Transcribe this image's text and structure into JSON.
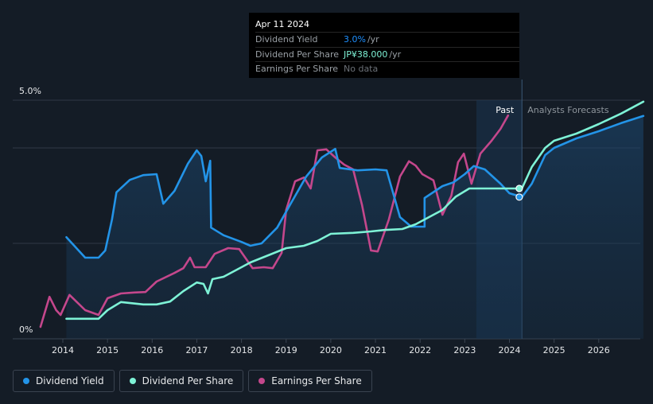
{
  "chart_data": {
    "type": "line",
    "x_range": [
      2013.45,
      2027.0
    ],
    "ylim": [
      0,
      5.0
    ],
    "y_axis_labels": [
      {
        "value": 5.0,
        "label": "5.0%"
      },
      {
        "value": 0,
        "label": "0%"
      }
    ],
    "gridlines": [
      5.0,
      4.0,
      2.0
    ],
    "x_ticks": [
      2014,
      2015,
      2016,
      2017,
      2018,
      2019,
      2020,
      2021,
      2022,
      2023,
      2024,
      2025,
      2026
    ],
    "past_region": {
      "start": 2023.26,
      "end": 2024.28,
      "label": "Past"
    },
    "forecast_label": "Analysts Forecasts",
    "series": [
      {
        "name": "Dividend Yield",
        "color": "#2394e8",
        "points": [
          [
            2014.08,
            2.13
          ],
          [
            2014.5,
            1.7
          ],
          [
            2014.8,
            1.7
          ],
          [
            2014.95,
            1.85
          ],
          [
            2015.1,
            2.5
          ],
          [
            2015.2,
            3.07
          ],
          [
            2015.5,
            3.33
          ],
          [
            2015.8,
            3.43
          ],
          [
            2016.1,
            3.45
          ],
          [
            2016.25,
            2.83
          ],
          [
            2016.5,
            3.1
          ],
          [
            2016.8,
            3.67
          ],
          [
            2017.0,
            3.95
          ],
          [
            2017.1,
            3.83
          ],
          [
            2017.2,
            3.3
          ],
          [
            2017.3,
            3.73
          ],
          [
            2017.32,
            2.33
          ],
          [
            2017.6,
            2.17
          ],
          [
            2018.0,
            2.03
          ],
          [
            2018.2,
            1.95
          ],
          [
            2018.45,
            2.0
          ],
          [
            2018.8,
            2.33
          ],
          [
            2019.1,
            2.83
          ],
          [
            2019.45,
            3.4
          ],
          [
            2019.8,
            3.8
          ],
          [
            2020.1,
            3.98
          ],
          [
            2020.2,
            3.58
          ],
          [
            2020.6,
            3.53
          ],
          [
            2021.0,
            3.55
          ],
          [
            2021.25,
            3.53
          ],
          [
            2021.55,
            2.55
          ],
          [
            2021.8,
            2.35
          ],
          [
            2022.1,
            2.35
          ],
          [
            2022.1,
            2.95
          ],
          [
            2022.5,
            3.2
          ],
          [
            2022.75,
            3.28
          ],
          [
            2023.0,
            3.45
          ],
          [
            2023.2,
            3.62
          ],
          [
            2023.45,
            3.55
          ],
          [
            2023.8,
            3.25
          ],
          [
            2024.0,
            3.05
          ],
          [
            2024.28,
            2.97
          ],
          [
            2024.5,
            3.25
          ],
          [
            2024.8,
            3.85
          ],
          [
            2025.0,
            4.0
          ],
          [
            2025.5,
            4.2
          ],
          [
            2026.0,
            4.35
          ],
          [
            2026.5,
            4.52
          ],
          [
            2027.0,
            4.67
          ]
        ]
      },
      {
        "name": "Dividend Per Share",
        "color": "#7ef2d6",
        "points": [
          [
            2014.08,
            0.42
          ],
          [
            2014.8,
            0.42
          ],
          [
            2015.0,
            0.6
          ],
          [
            2015.3,
            0.77
          ],
          [
            2015.8,
            0.72
          ],
          [
            2016.1,
            0.72
          ],
          [
            2016.4,
            0.78
          ],
          [
            2016.7,
            1.0
          ],
          [
            2017.0,
            1.18
          ],
          [
            2017.15,
            1.15
          ],
          [
            2017.25,
            0.95
          ],
          [
            2017.35,
            1.25
          ],
          [
            2017.6,
            1.3
          ],
          [
            2017.9,
            1.45
          ],
          [
            2018.2,
            1.6
          ],
          [
            2018.6,
            1.75
          ],
          [
            2019.0,
            1.9
          ],
          [
            2019.4,
            1.95
          ],
          [
            2019.7,
            2.05
          ],
          [
            2020.0,
            2.2
          ],
          [
            2020.5,
            2.22
          ],
          [
            2020.9,
            2.25
          ],
          [
            2021.2,
            2.28
          ],
          [
            2021.6,
            2.3
          ],
          [
            2021.9,
            2.4
          ],
          [
            2022.2,
            2.55
          ],
          [
            2022.5,
            2.7
          ],
          [
            2022.8,
            2.98
          ],
          [
            2023.1,
            3.15
          ],
          [
            2023.5,
            3.15
          ],
          [
            2024.0,
            3.15
          ],
          [
            2024.28,
            3.15
          ],
          [
            2024.5,
            3.6
          ],
          [
            2024.8,
            4.0
          ],
          [
            2025.0,
            4.15
          ],
          [
            2025.5,
            4.3
          ],
          [
            2026.0,
            4.5
          ],
          [
            2026.5,
            4.72
          ],
          [
            2027.0,
            4.97
          ]
        ]
      },
      {
        "name": "Earnings Per Share",
        "color": "#c4478c",
        "points": [
          [
            2013.5,
            0.25
          ],
          [
            2013.7,
            0.88
          ],
          [
            2013.85,
            0.6
          ],
          [
            2013.95,
            0.5
          ],
          [
            2014.15,
            0.92
          ],
          [
            2014.5,
            0.6
          ],
          [
            2014.8,
            0.5
          ],
          [
            2015.0,
            0.85
          ],
          [
            2015.3,
            0.95
          ],
          [
            2015.6,
            0.97
          ],
          [
            2015.85,
            0.98
          ],
          [
            2016.1,
            1.2
          ],
          [
            2016.5,
            1.38
          ],
          [
            2016.7,
            1.48
          ],
          [
            2016.85,
            1.7
          ],
          [
            2016.95,
            1.5
          ],
          [
            2017.2,
            1.5
          ],
          [
            2017.4,
            1.78
          ],
          [
            2017.7,
            1.9
          ],
          [
            2017.95,
            1.88
          ],
          [
            2018.1,
            1.68
          ],
          [
            2018.25,
            1.48
          ],
          [
            2018.5,
            1.5
          ],
          [
            2018.7,
            1.48
          ],
          [
            2018.9,
            1.8
          ],
          [
            2019.0,
            2.7
          ],
          [
            2019.2,
            3.3
          ],
          [
            2019.4,
            3.38
          ],
          [
            2019.55,
            3.15
          ],
          [
            2019.7,
            3.95
          ],
          [
            2019.9,
            3.97
          ],
          [
            2020.1,
            3.8
          ],
          [
            2020.3,
            3.65
          ],
          [
            2020.5,
            3.55
          ],
          [
            2020.7,
            2.8
          ],
          [
            2020.9,
            1.85
          ],
          [
            2021.05,
            1.83
          ],
          [
            2021.3,
            2.5
          ],
          [
            2021.55,
            3.4
          ],
          [
            2021.75,
            3.72
          ],
          [
            2021.9,
            3.63
          ],
          [
            2022.05,
            3.45
          ],
          [
            2022.3,
            3.32
          ],
          [
            2022.5,
            2.6
          ],
          [
            2022.7,
            3.0
          ],
          [
            2022.85,
            3.7
          ],
          [
            2022.98,
            3.88
          ],
          [
            2023.15,
            3.25
          ],
          [
            2023.35,
            3.88
          ],
          [
            2023.6,
            4.15
          ],
          [
            2023.8,
            4.4
          ],
          [
            2023.97,
            4.68
          ]
        ]
      }
    ],
    "markers": [
      {
        "series": "Dividend Yield",
        "x": 2024.22,
        "y": 2.97
      },
      {
        "series": "Dividend Per Share",
        "x": 2024.22,
        "y": 3.15
      }
    ]
  },
  "tooltip": {
    "date": "Apr 11 2024",
    "rows": [
      {
        "label": "Dividend Yield",
        "value": "3.0%",
        "unit": "/yr"
      },
      {
        "label": "Dividend Per Share",
        "value": "JP¥38.000",
        "unit": "/yr"
      },
      {
        "label": "Earnings Per Share",
        "value": "No data",
        "unit": ""
      }
    ]
  },
  "legend": [
    {
      "label": "Dividend Yield",
      "color": "#2394e8"
    },
    {
      "label": "Dividend Per Share",
      "color": "#7ef2d6"
    },
    {
      "label": "Earnings Per Share",
      "color": "#c4478c"
    }
  ]
}
